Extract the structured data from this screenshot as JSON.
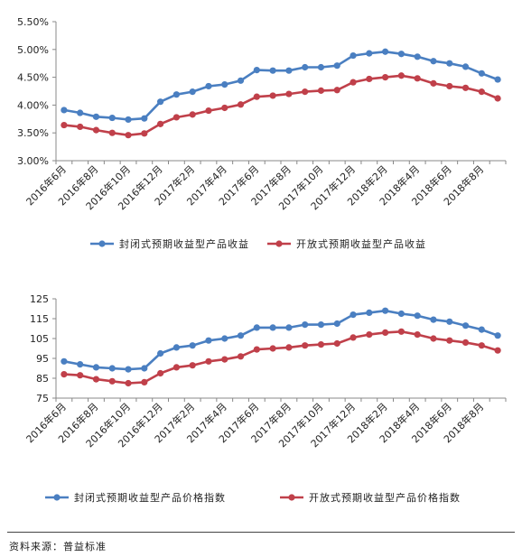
{
  "colors": {
    "closed": "#4a7fc1",
    "open": "#c0404a",
    "axis": "#888888"
  },
  "chart_data": [
    {
      "type": "line",
      "x": [
        "2016年6月",
        "2016年7月",
        "2016年8月",
        "2016年9月",
        "2016年10月",
        "2016年11月",
        "2016年12月",
        "2017年1月",
        "2017年2月",
        "2017年3月",
        "2017年4月",
        "2017年5月",
        "2017年6月",
        "2017年7月",
        "2017年8月",
        "2017年9月",
        "2017年10月",
        "2017年11月",
        "2017年12月",
        "2018年1月",
        "2018年2月",
        "2018年3月",
        "2018年4月",
        "2018年5月",
        "2018年6月",
        "2018年7月",
        "2018年8月",
        "2018年9月"
      ],
      "x_tick_labels": [
        "2016年6月",
        "2016年8月",
        "2016年10月",
        "2016年12月",
        "2017年2月",
        "2017年4月",
        "2017年6月",
        "2017年8月",
        "2017年10月",
        "2017年12月",
        "2018年2月",
        "2018年4月",
        "2018年6月",
        "2018年8月"
      ],
      "y_tick_labels": [
        "3.00%",
        "3.50%",
        "4.00%",
        "4.50%",
        "5.00%",
        "5.50%"
      ],
      "ylim": [
        3.0,
        5.5
      ],
      "series": [
        {
          "name": "封闭式预期收益型产品收益",
          "color": "#4a7fc1",
          "values": [
            3.91,
            3.86,
            3.79,
            3.77,
            3.74,
            3.76,
            4.06,
            4.19,
            4.24,
            4.34,
            4.37,
            4.44,
            4.63,
            4.62,
            4.62,
            4.68,
            4.68,
            4.71,
            4.89,
            4.93,
            4.96,
            4.92,
            4.87,
            4.79,
            4.75,
            4.69,
            4.57,
            4.46
          ]
        },
        {
          "name": "开放式预期收益型产品收益",
          "color": "#c0404a",
          "values": [
            3.64,
            3.61,
            3.55,
            3.5,
            3.46,
            3.49,
            3.66,
            3.78,
            3.83,
            3.9,
            3.95,
            4.01,
            4.15,
            4.17,
            4.2,
            4.24,
            4.26,
            4.27,
            4.41,
            4.47,
            4.5,
            4.53,
            4.48,
            4.39,
            4.34,
            4.31,
            4.24,
            4.12
          ]
        }
      ],
      "legend": "bottom",
      "grid": false
    },
    {
      "type": "line",
      "x": [
        "2016年6月",
        "2016年7月",
        "2016年8月",
        "2016年9月",
        "2016年10月",
        "2016年11月",
        "2016年12月",
        "2017年1月",
        "2017年2月",
        "2017年3月",
        "2017年4月",
        "2017年5月",
        "2017年6月",
        "2017年7月",
        "2017年8月",
        "2017年9月",
        "2017年10月",
        "2017年11月",
        "2017年12月",
        "2018年1月",
        "2018年2月",
        "2018年3月",
        "2018年4月",
        "2018年5月",
        "2018年6月",
        "2018年7月",
        "2018年8月",
        "2018年9月"
      ],
      "x_tick_labels": [
        "2016年6月",
        "2016年8月",
        "2016年10月",
        "2016年12月",
        "2017年2月",
        "2017年4月",
        "2017年6月",
        "2017年8月",
        "2017年10月",
        "2017年12月",
        "2018年2月",
        "2018年4月",
        "2018年6月",
        "2018年8月"
      ],
      "y_tick_labels": [
        "75",
        "85",
        "95",
        "105",
        "115",
        "125"
      ],
      "ylim": [
        75,
        125
      ],
      "series": [
        {
          "name": "封闭式预期收益型产品价格指数",
          "color": "#4a7fc1",
          "values": [
            93.5,
            92.0,
            90.5,
            90.0,
            89.5,
            90.0,
            97.5,
            100.5,
            101.5,
            104.0,
            105.0,
            106.5,
            110.5,
            110.5,
            110.5,
            112.0,
            112.0,
            112.5,
            117.0,
            118.0,
            119.0,
            117.5,
            116.5,
            114.5,
            113.5,
            111.5,
            109.5,
            106.5
          ]
        },
        {
          "name": "开放式预期收益型产品价格指数",
          "color": "#c0404a",
          "values": [
            87.0,
            86.5,
            84.5,
            83.5,
            82.5,
            83.0,
            87.5,
            90.5,
            91.5,
            93.5,
            94.5,
            96.0,
            99.5,
            100.0,
            100.5,
            101.5,
            102.0,
            102.5,
            105.5,
            107.0,
            108.0,
            108.5,
            107.0,
            105.0,
            104.0,
            103.0,
            101.5,
            99.0
          ]
        }
      ],
      "legend": "bottom",
      "grid": false
    }
  ],
  "footer": {
    "source": "资料来源：普益标准"
  }
}
